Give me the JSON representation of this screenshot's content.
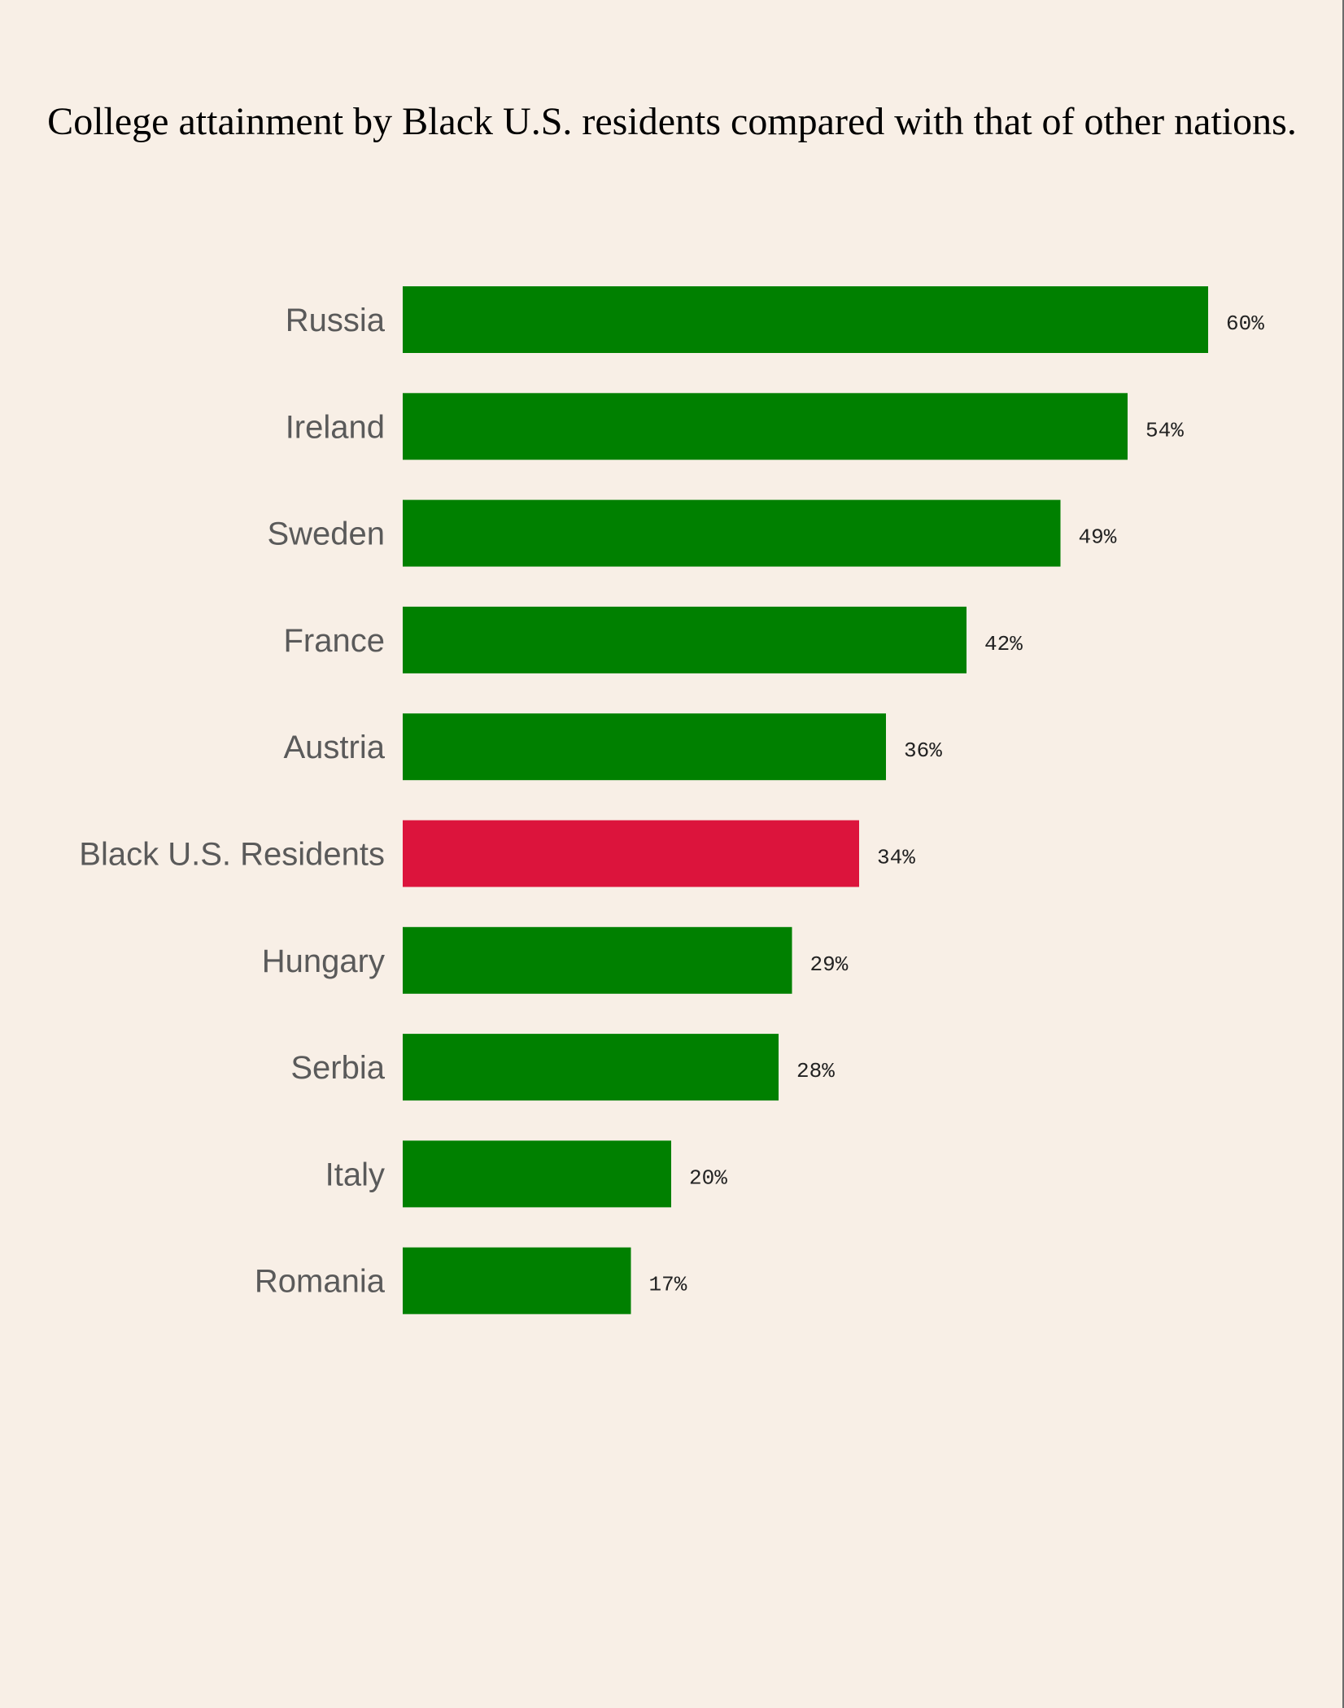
{
  "colors": {
    "background": "#f8efe6",
    "bar_default": "#008000",
    "bar_highlight": "#dc143c",
    "label_text": "#5a5a5a",
    "value_text": "#222222"
  },
  "chart_data": {
    "type": "bar",
    "orientation": "horizontal",
    "title": "College attainment by Black U.S. residents compared with that of other nations.",
    "categories": [
      "Russia",
      "Ireland",
      "Sweden",
      "France",
      "Austria",
      "Black U.S. Residents",
      "Hungary",
      "Serbia",
      "Italy",
      "Romania"
    ],
    "values": [
      60,
      54,
      49,
      42,
      36,
      34,
      29,
      28,
      20,
      17
    ],
    "value_labels": [
      "60%",
      "54%",
      "49%",
      "42%",
      "36%",
      "34%",
      "29%",
      "28%",
      "20%",
      "17%"
    ],
    "highlight_category": "Black U.S. Residents",
    "xlabel": "",
    "ylabel": "",
    "xlim": [
      0,
      60
    ],
    "grid": false,
    "legend": "none"
  }
}
